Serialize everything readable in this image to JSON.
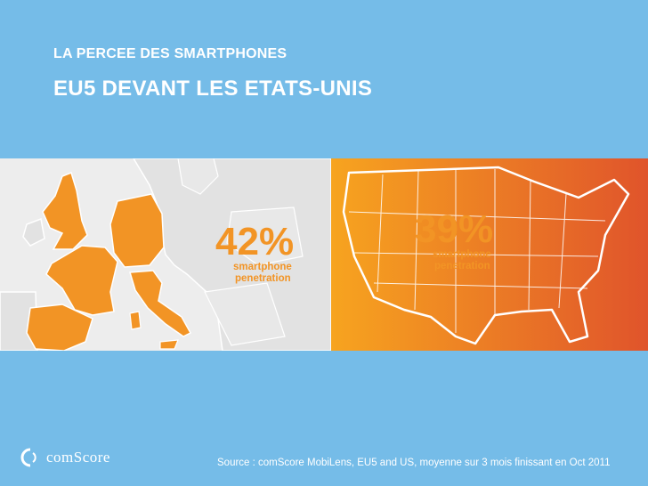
{
  "slide": {
    "kicker": "LA PERCEE DES SMARTPHONES",
    "headline": "EU5 DEVANT LES ETATS-UNIS",
    "source": "Source : comScore MobiLens, EU5 and US, moyenne sur 3 mois finissant en Oct 2011",
    "logo": "comScore"
  },
  "stats": {
    "eu5": {
      "value": "42%",
      "line1": "smartphone",
      "line2": "penetration"
    },
    "us": {
      "value": "39%",
      "line1": "smartphone",
      "line2": "penetration"
    }
  },
  "colors": {
    "background": "#75BCE8",
    "eu_map_bg": "#EDEDED",
    "eu_highlight": "#F29425",
    "us_gradient_start": "#F7A41F",
    "us_gradient_end": "#E0542B",
    "stat_text": "#F29425"
  }
}
